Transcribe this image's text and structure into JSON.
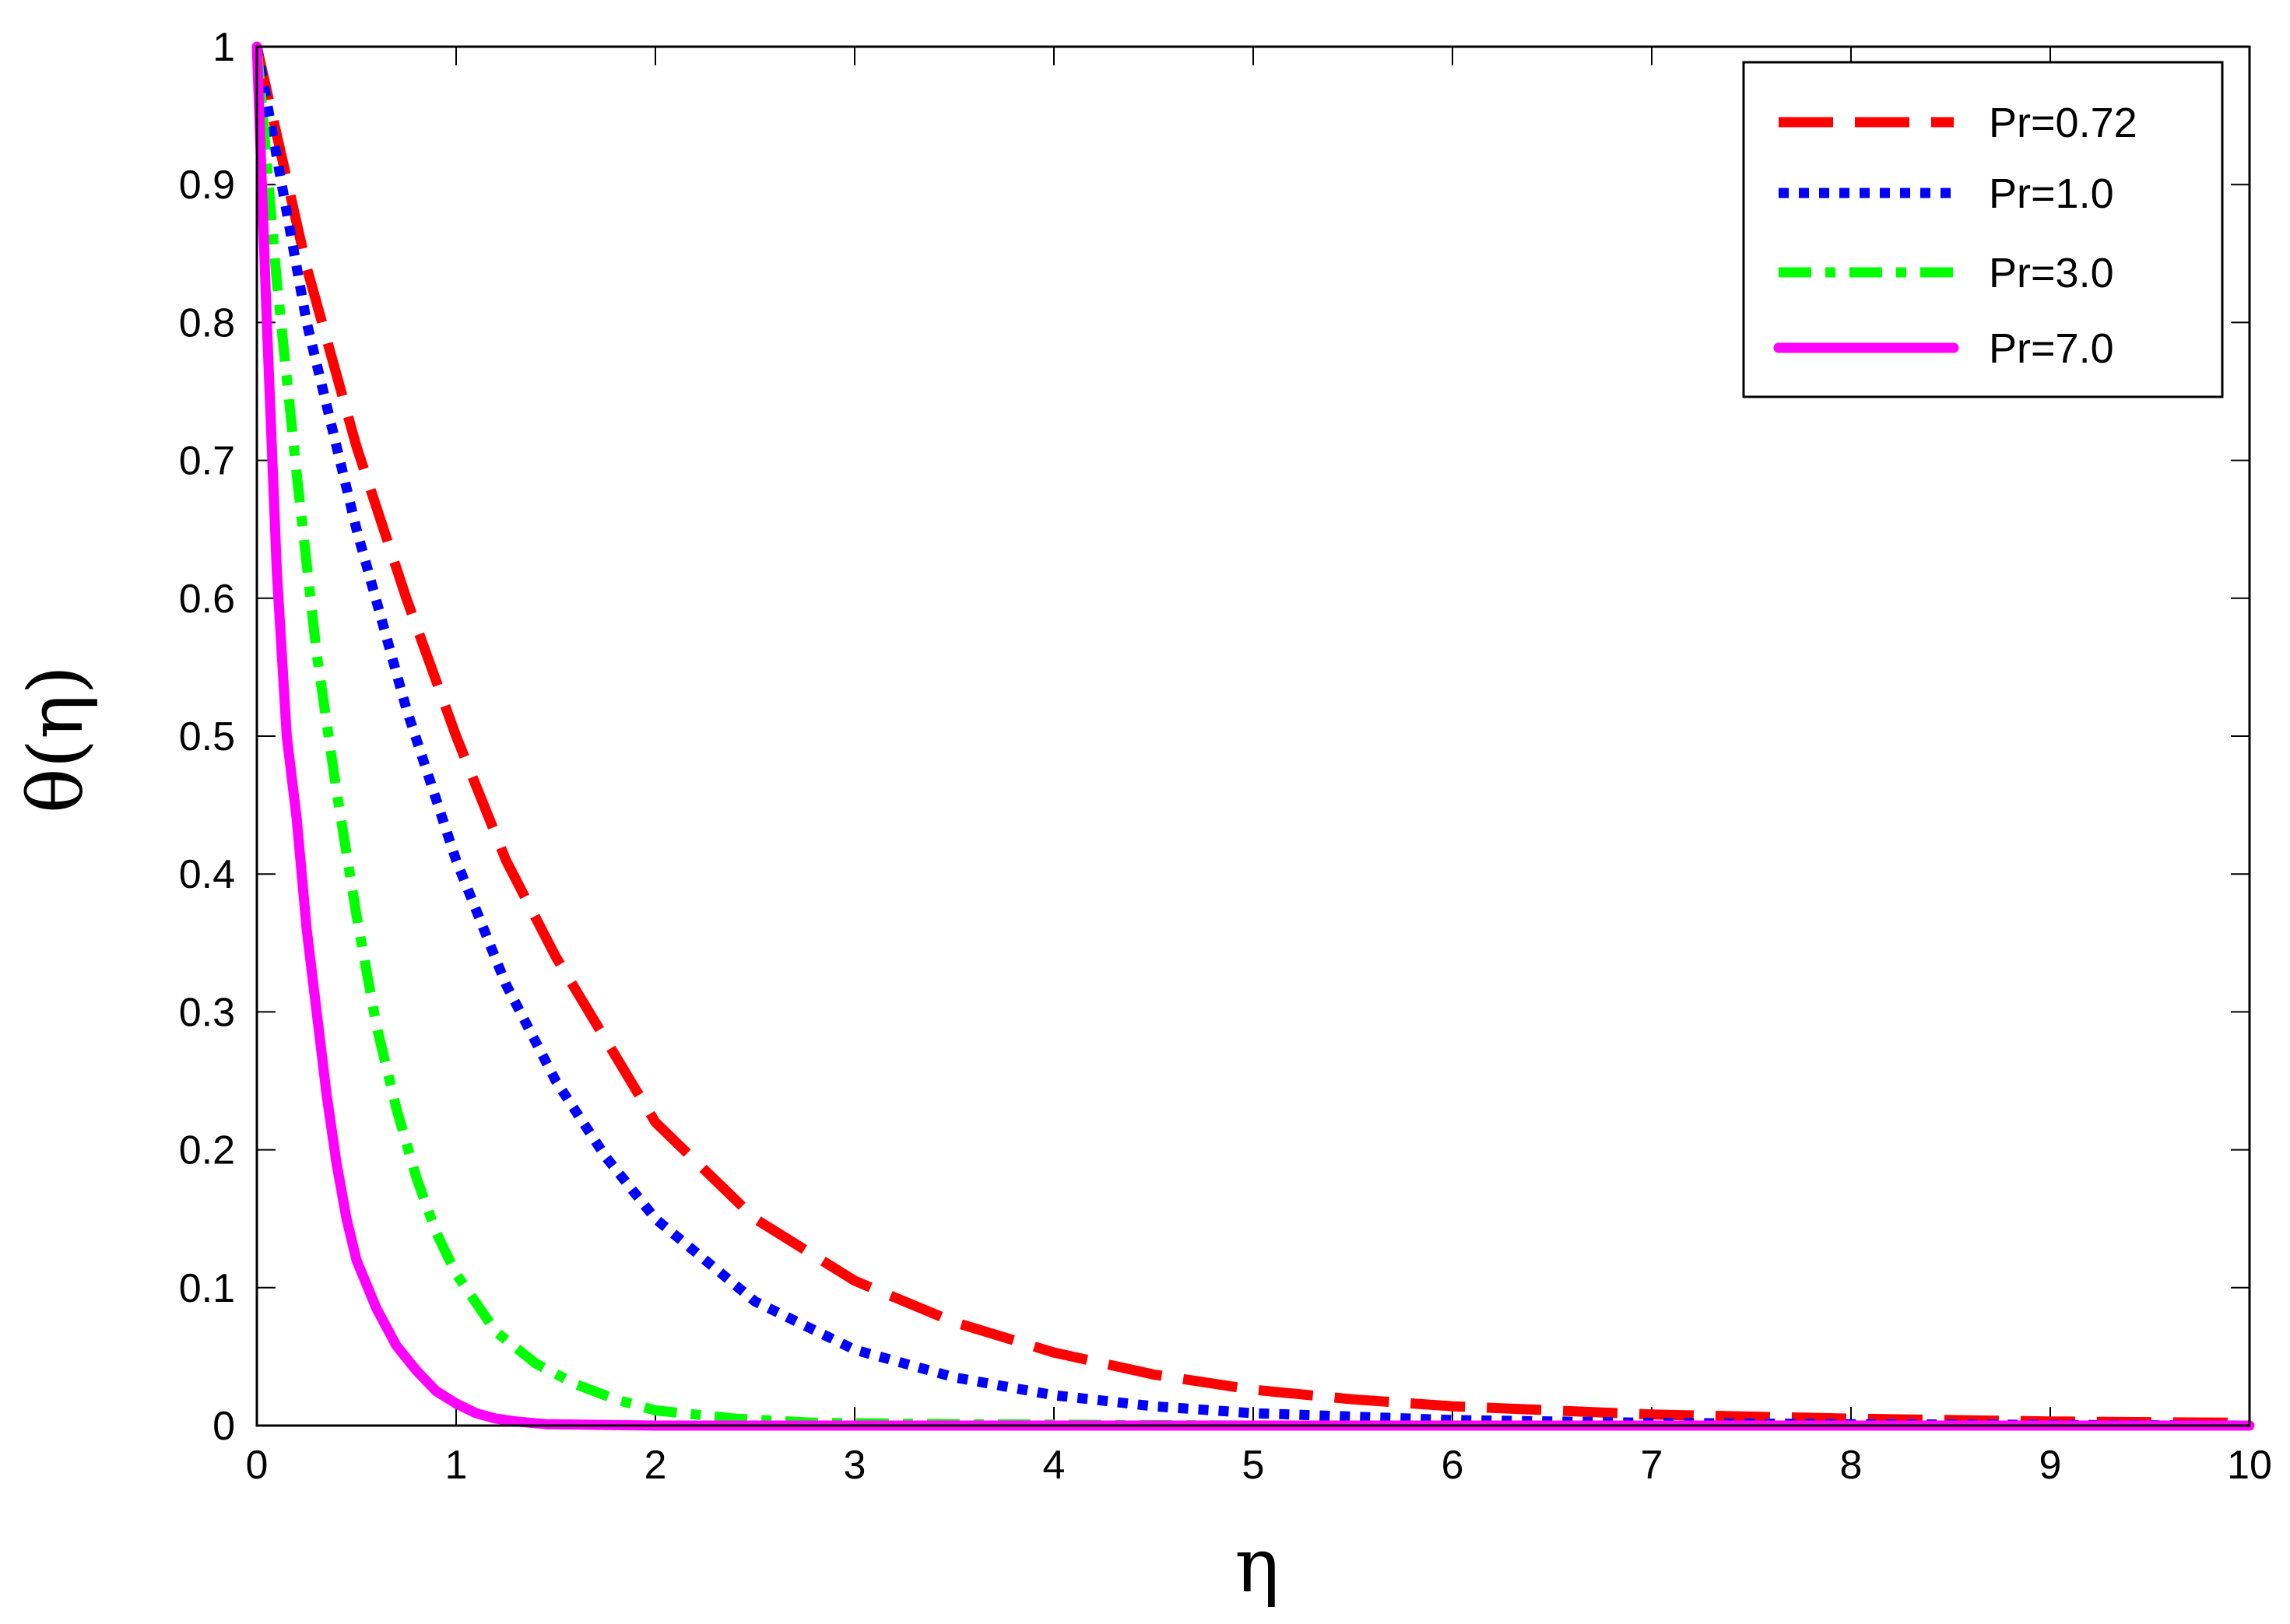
{
  "chart_data": {
    "type": "line",
    "xlabel": "η",
    "ylabel": "θ(η)",
    "xlim": [
      0,
      10
    ],
    "ylim": [
      0,
      1
    ],
    "xticks": [
      "0",
      "1",
      "2",
      "3",
      "4",
      "5",
      "6",
      "7",
      "8",
      "9",
      "10"
    ],
    "yticks": [
      "0",
      "0.1",
      "0.2",
      "0.3",
      "0.4",
      "0.5",
      "0.6",
      "0.7",
      "0.8",
      "0.9",
      "1"
    ],
    "grid": false,
    "legend_position": "top-right",
    "series": [
      {
        "name": "Pr=0.72",
        "color": "#ff0000",
        "style": "dashed",
        "x": [
          0,
          0.25,
          0.5,
          0.75,
          1,
          1.25,
          1.5,
          1.75,
          2,
          2.5,
          3,
          3.5,
          4,
          4.5,
          5,
          5.5,
          6,
          7,
          8,
          9,
          10
        ],
        "y": [
          1,
          0.84,
          0.71,
          0.6,
          0.5,
          0.41,
          0.34,
          0.28,
          0.22,
          0.15,
          0.105,
          0.075,
          0.053,
          0.037,
          0.026,
          0.019,
          0.014,
          0.008,
          0.005,
          0.003,
          0.002
        ]
      },
      {
        "name": "Pr=1.0",
        "color": "#0000ff",
        "style": "dotted",
        "x": [
          0,
          0.25,
          0.5,
          0.75,
          1,
          1.25,
          1.5,
          1.75,
          2,
          2.5,
          3,
          3.5,
          4,
          4.5,
          5,
          6,
          7,
          8,
          9,
          10
        ],
        "y": [
          1,
          0.8,
          0.65,
          0.52,
          0.41,
          0.32,
          0.25,
          0.195,
          0.15,
          0.09,
          0.055,
          0.035,
          0.022,
          0.014,
          0.009,
          0.004,
          0.002,
          0.001,
          0.0005,
          0
        ]
      },
      {
        "name": "Pr=3.0",
        "color": "#00ff00",
        "style": "dash-dot",
        "x": [
          0,
          0.1,
          0.2,
          0.3,
          0.4,
          0.5,
          0.6,
          0.7,
          0.8,
          0.9,
          1,
          1.2,
          1.4,
          1.6,
          1.8,
          2,
          2.4,
          2.8,
          3.5,
          5,
          7,
          10
        ],
        "y": [
          1,
          0.83,
          0.69,
          0.56,
          0.46,
          0.37,
          0.29,
          0.23,
          0.18,
          0.14,
          0.11,
          0.068,
          0.045,
          0.03,
          0.019,
          0.011,
          0.005,
          0.002,
          0.001,
          0,
          0,
          0
        ]
      },
      {
        "name": "Pr=7.0",
        "color": "#ff00ff",
        "style": "solid",
        "x": [
          0,
          0.05,
          0.1,
          0.15,
          0.2,
          0.25,
          0.3,
          0.35,
          0.4,
          0.45,
          0.5,
          0.6,
          0.7,
          0.8,
          0.9,
          1,
          1.1,
          1.2,
          1.3,
          1.45,
          2,
          3,
          5,
          10
        ],
        "y": [
          1,
          0.8,
          0.62,
          0.5,
          0.44,
          0.36,
          0.3,
          0.24,
          0.19,
          0.15,
          0.12,
          0.085,
          0.058,
          0.04,
          0.025,
          0.016,
          0.009,
          0.005,
          0.003,
          0.001,
          0,
          0,
          0,
          0
        ]
      }
    ]
  }
}
